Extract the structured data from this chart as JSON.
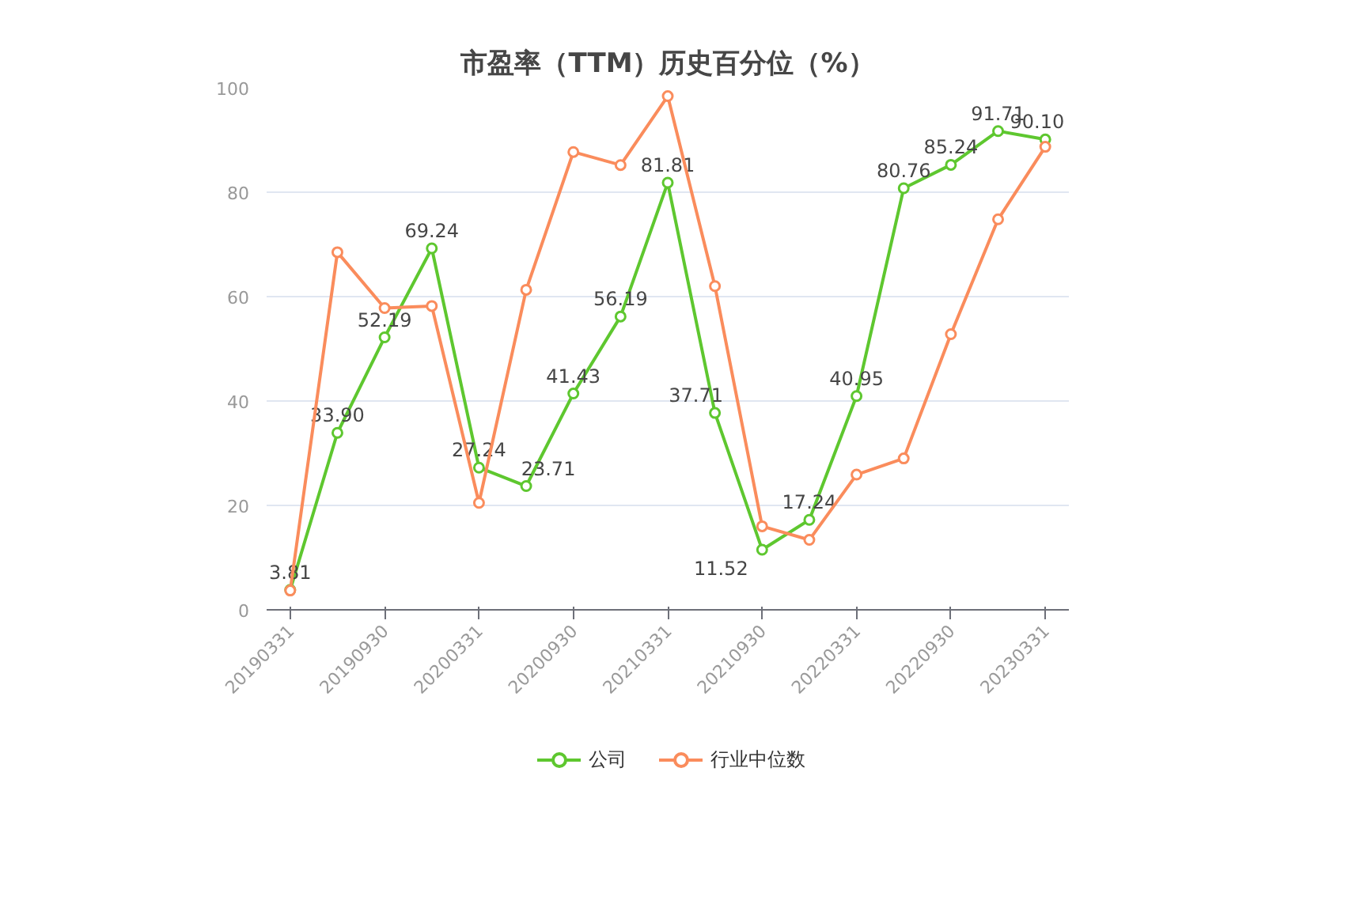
{
  "chart_data": {
    "type": "line",
    "title": "市盈率（TTM）历史百分位（%）",
    "categories": [
      "20190331",
      null,
      "20190930",
      null,
      "20200331",
      null,
      "20200930",
      null,
      "20210331",
      null,
      "20210930",
      null,
      "20220331",
      null,
      "20220930",
      null,
      "20230331"
    ],
    "series": [
      {
        "name": "公司",
        "color": "#5ec72f",
        "values": [
          3.81,
          33.9,
          52.19,
          69.24,
          27.24,
          23.71,
          41.43,
          56.19,
          81.81,
          37.71,
          11.52,
          17.24,
          40.95,
          80.76,
          85.24,
          91.71,
          90.1
        ],
        "value_labels": [
          "3.81",
          "33.90",
          "52.19",
          "69.24",
          "27.24",
          "23.71",
          "41.43",
          "56.19",
          "81.81",
          "37.71",
          "11.52",
          "17.24",
          "40.95",
          "80.76",
          "85.24",
          "91.71",
          "90.10"
        ]
      },
      {
        "name": "行业中位数",
        "color": "#fa8c5c",
        "values": [
          3.7,
          68.5,
          57.8,
          58.2,
          20.5,
          61.3,
          87.7,
          85.2,
          98.4,
          62.0,
          16.0,
          13.4,
          25.9,
          29.0,
          52.8,
          74.8,
          88.7
        ]
      }
    ],
    "ylim": [
      0,
      100
    ],
    "yticks": [
      0,
      20,
      40,
      60,
      80,
      100
    ],
    "grid": "y",
    "legend": "bottom",
    "marker": "circle",
    "line_style": "solid"
  }
}
